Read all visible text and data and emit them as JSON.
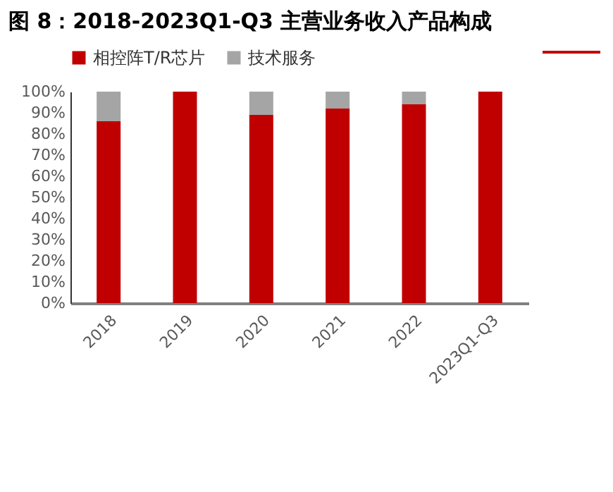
{
  "chart_data": {
    "type": "bar",
    "title": "图 8：2018-2023Q1-Q3 主营业务收入产品构成",
    "stacked": true,
    "legend": "top",
    "categories": [
      "2018",
      "2019",
      "2020",
      "2021",
      "2022",
      "2023Q1-Q3"
    ],
    "series": [
      {
        "name": "相控阵T/R芯片",
        "color": "#c00000",
        "values": [
          86,
          100,
          89,
          92,
          94,
          100
        ]
      },
      {
        "name": "技术服务",
        "color": "#a5a5a5",
        "values": [
          14,
          0,
          11,
          8,
          6,
          0
        ]
      }
    ],
    "ylim": [
      0,
      100
    ],
    "yticks": [
      {
        "value": 0,
        "label": "0%"
      },
      {
        "value": 10,
        "label": "10%"
      },
      {
        "value": 20,
        "label": "20%"
      },
      {
        "value": 30,
        "label": "30%"
      },
      {
        "value": 40,
        "label": "40%"
      },
      {
        "value": 50,
        "label": "50%"
      },
      {
        "value": 60,
        "label": "60%"
      },
      {
        "value": 70,
        "label": "70%"
      },
      {
        "value": 80,
        "label": "80%"
      },
      {
        "value": 90,
        "label": "90%"
      },
      {
        "value": 100,
        "label": "100%"
      }
    ],
    "grid": false
  }
}
